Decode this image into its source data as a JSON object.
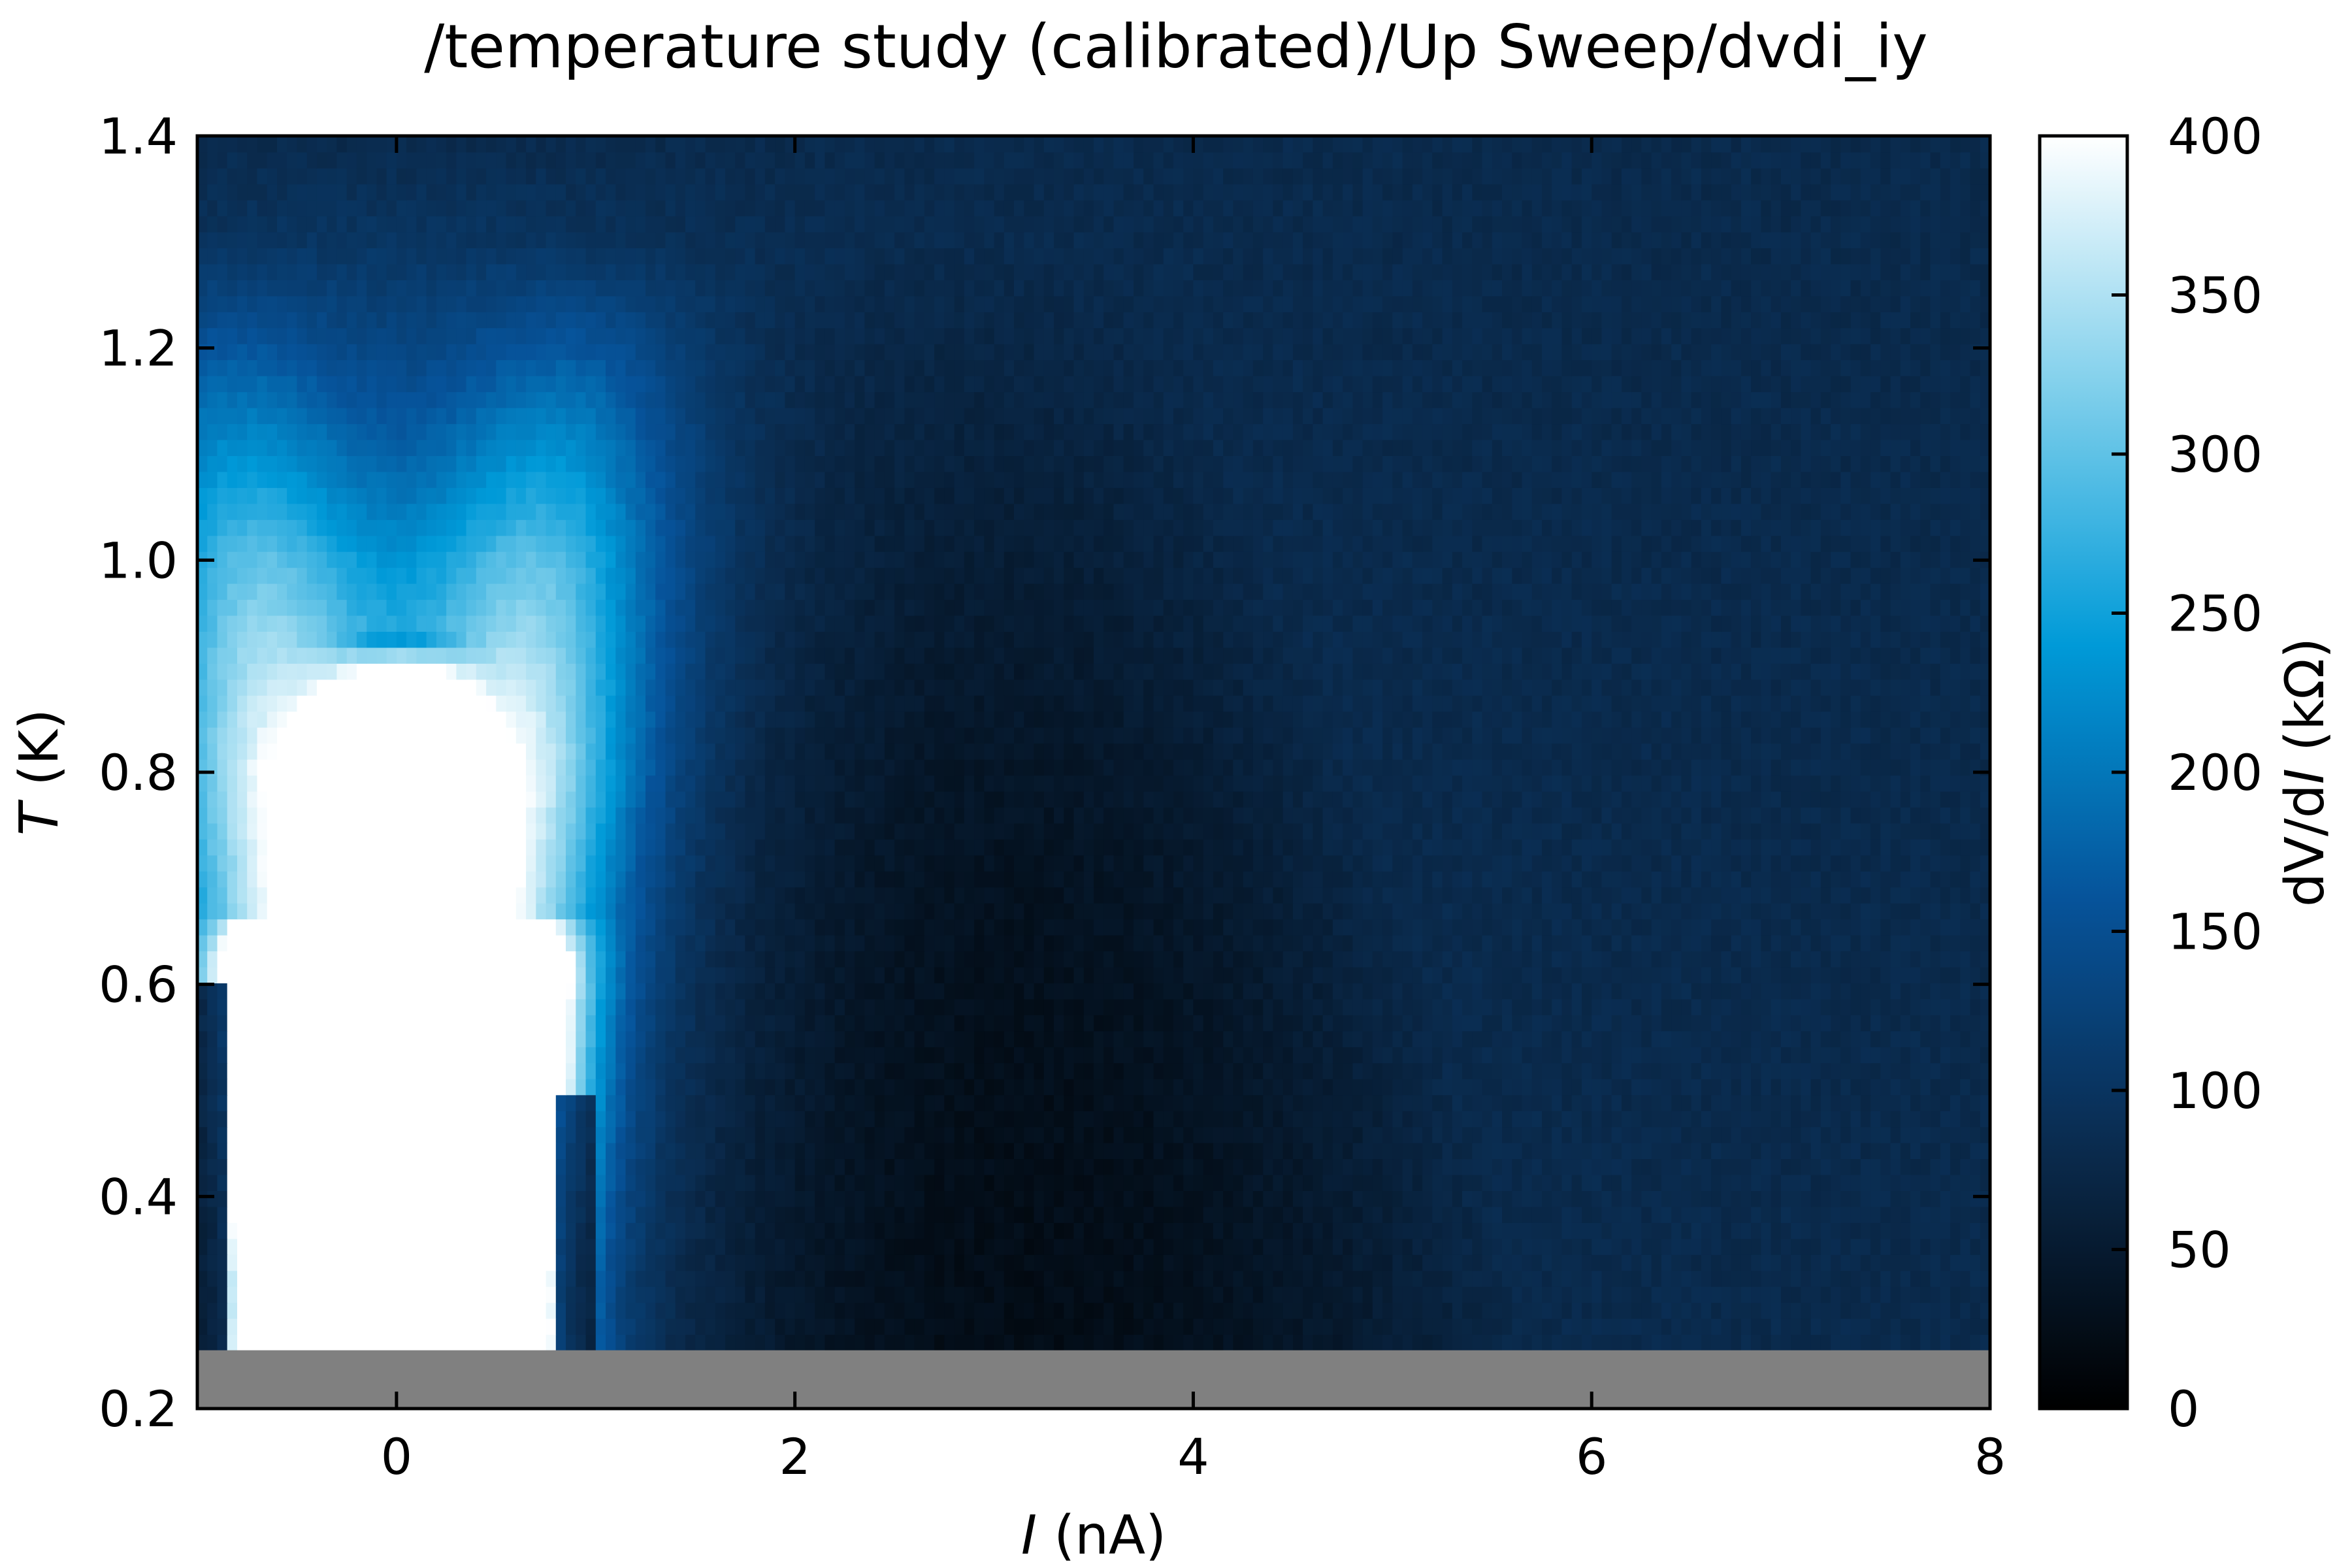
{
  "chart_data": {
    "type": "heatmap",
    "title": "/temperature study (calibrated)/Up Sweep/dvdi_iy",
    "xlabel": {
      "var": "I",
      "unit": " (nA)"
    },
    "ylabel": {
      "var": "T",
      "unit": " (K)"
    },
    "colorbar_label": {
      "pre": "dV/d",
      "var": "I",
      "post": " (kΩ)"
    },
    "xlim": [
      -1.0,
      8.0
    ],
    "ylim": [
      0.2,
      1.4
    ],
    "clim": [
      0,
      400
    ],
    "x_ticks": [
      0,
      2,
      4,
      6,
      8
    ],
    "y_ticks": [
      0.2,
      0.4,
      0.6,
      0.8,
      1.0,
      1.2,
      1.4
    ],
    "colorbar_ticks": [
      0,
      50,
      100,
      150,
      200,
      250,
      300,
      350,
      400
    ],
    "x_tick_labels": [
      "0",
      "2",
      "4",
      "6",
      "8"
    ],
    "y_tick_labels": [
      "0.2",
      "0.4",
      "0.6",
      "0.8",
      "1.0",
      "1.2",
      "1.4"
    ],
    "colorbar_tick_labels": [
      "0",
      "50",
      "100",
      "150",
      "200",
      "250",
      "300",
      "350",
      "400"
    ],
    "no_data_below_T": 0.255,
    "no_data_color": "#808080",
    "colormap": [
      "#000000",
      "#0a2a4c",
      "#06539a",
      "#009ad8",
      "#7fcfeb",
      "#ffffff"
    ],
    "features": {
      "background_high_T_kohm": 80,
      "dip_region_kohm": 20,
      "peak_currents_nA": [
        -0.4,
        0.4
      ],
      "peak_max_kohm": 400,
      "central_max_T_K": 0.88
    }
  }
}
